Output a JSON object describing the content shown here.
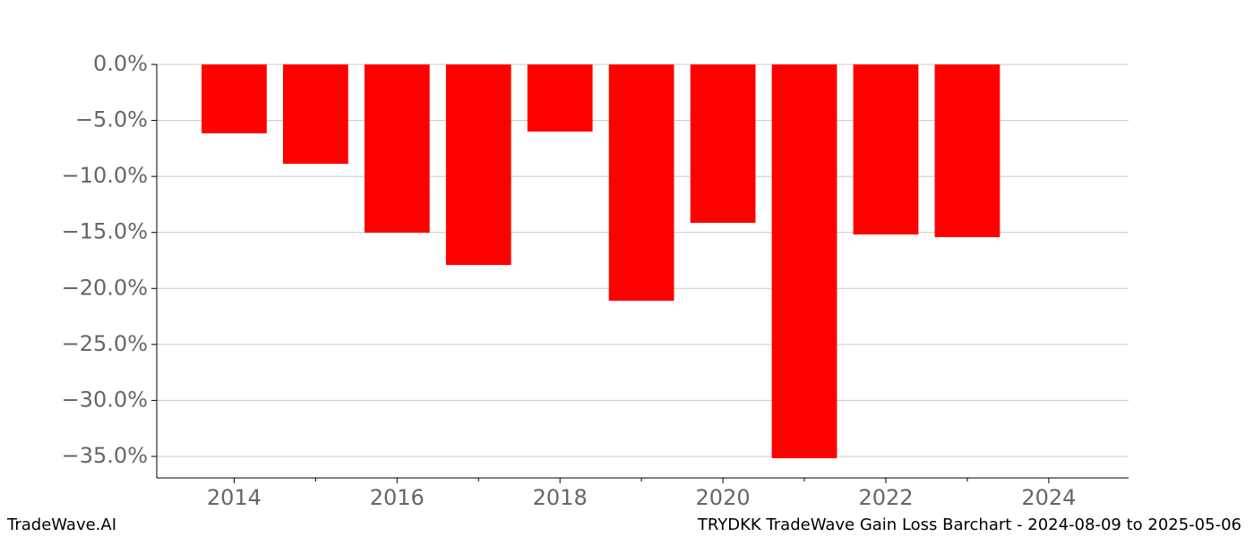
{
  "chart_data": {
    "type": "bar",
    "title": "TRYDKK TradeWave Gain Loss Barchart - 2024-08-09 to 2025-05-06",
    "watermark": "TradeWave.AI",
    "x": [
      2014,
      2015,
      2016,
      2017,
      2018,
      2019,
      2020,
      2021,
      2022,
      2023
    ],
    "values": [
      -6.15,
      -8.87,
      -15.02,
      -17.9,
      -5.99,
      -21.1,
      -14.14,
      -35.16,
      -15.18,
      -15.42
    ],
    "color": "#ff0000",
    "bar_width": 0.8,
    "xlim": [
      2013.05,
      2024.98
    ],
    "xticks": [
      2014,
      2016,
      2018,
      2020,
      2022,
      2024
    ],
    "xminor_ticks": [
      2015,
      2017,
      2019,
      2021,
      2023
    ],
    "ylim": [
      -36.92,
      0
    ],
    "yticks": [
      {
        "value": 0,
        "label": "0.0%"
      },
      {
        "value": -5,
        "label": "−5.0%"
      },
      {
        "value": -10,
        "label": "−10.0%"
      },
      {
        "value": -15,
        "label": "−15.0%"
      },
      {
        "value": -20,
        "label": "−20.0%"
      },
      {
        "value": -25,
        "label": "−25.0%"
      },
      {
        "value": -30,
        "label": "−30.0%"
      },
      {
        "value": -35,
        "label": "−35.0%"
      }
    ],
    "grid": true
  }
}
